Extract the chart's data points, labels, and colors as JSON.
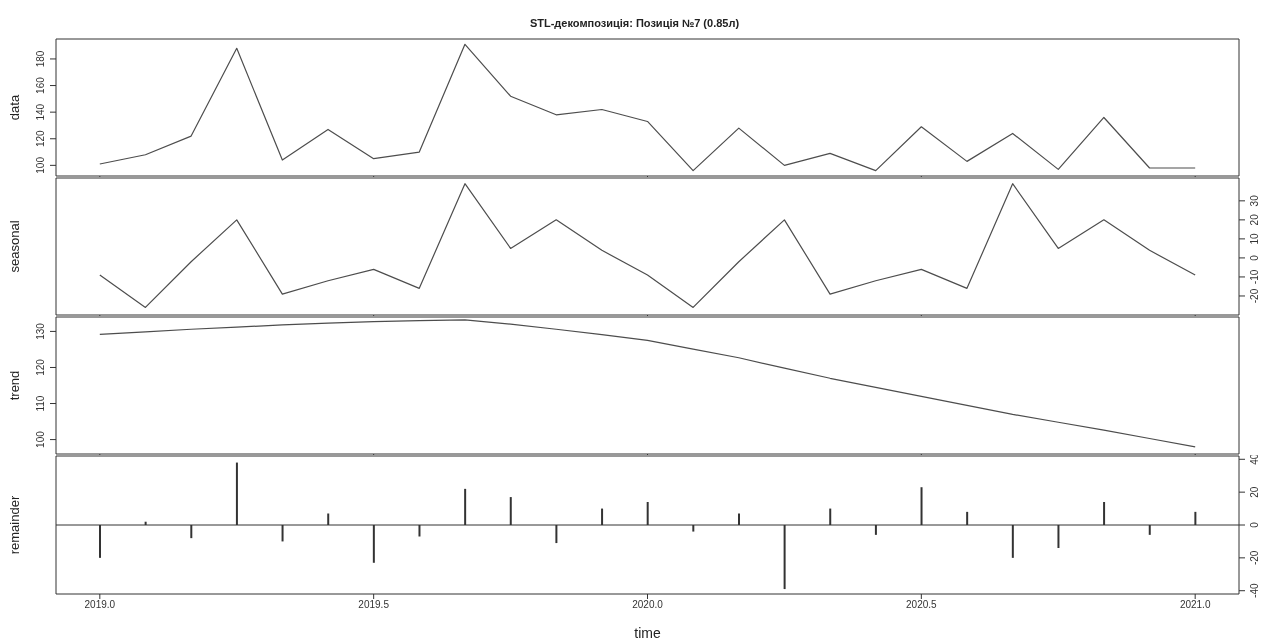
{
  "chart_data": [
    {
      "type": "line",
      "title": "STL-декомпозиція: Позиція №7 (0.85л)",
      "ylabel": "data",
      "x": [
        2019,
        2019.0833,
        2019.1667,
        2019.25,
        2019.3333,
        2019.4167,
        2019.5,
        2019.5833,
        2019.6667,
        2019.75,
        2019.8333,
        2019.9167,
        2020,
        2020.0833,
        2020.1667,
        2020.25,
        2020.3333,
        2020.4167,
        2020.5,
        2020.5833,
        2020.6667,
        2020.75,
        2020.8333,
        2020.9167,
        2021
      ],
      "series": [
        {
          "color": "#4d4d4d",
          "values": [
            101,
            108,
            122,
            188,
            104,
            127,
            105,
            110,
            191,
            152,
            138,
            142,
            133,
            96,
            128,
            100,
            109,
            96,
            129,
            103,
            124,
            97,
            136,
            98,
            98
          ]
        }
      ],
      "xlim": [
        2018.92,
        2021.08
      ],
      "xticks": [
        {
          "value": 2019,
          "label": null
        },
        {
          "value": 2019.5,
          "label": null
        },
        {
          "value": 2020,
          "label": null
        },
        {
          "value": 2020.5,
          "label": null
        },
        {
          "value": 2021,
          "label": null
        }
      ],
      "ylim": [
        92,
        195
      ],
      "yticks": [
        100,
        120,
        140,
        160,
        180
      ],
      "tick_labels": "y"
    },
    {
      "type": "line",
      "ylabel": "seasonal",
      "x": [
        2019,
        2019.0833,
        2019.1667,
        2019.25,
        2019.3333,
        2019.4167,
        2019.5,
        2019.5833,
        2019.6667,
        2019.75,
        2019.8333,
        2019.9167,
        2020,
        2020.0833,
        2020.1667,
        2020.25,
        2020.3333,
        2020.4167,
        2020.5,
        2020.5833,
        2020.6667,
        2020.75,
        2020.8333,
        2020.9167,
        2021
      ],
      "series": [
        {
          "color": "#4d4d4d",
          "axis": "y2",
          "values": [
            -9,
            -26,
            -2,
            20,
            -19,
            -12,
            -6,
            -16,
            39,
            5,
            20,
            4,
            -9,
            -26,
            -2,
            20,
            -19,
            -12,
            -6,
            -16,
            39,
            5,
            20,
            4,
            -9
          ]
        }
      ],
      "xlim": [
        2018.92,
        2021.08
      ],
      "xticks": [
        {
          "value": 2019,
          "label": null
        },
        {
          "value": 2019.5,
          "label": null
        },
        {
          "value": 2020,
          "label": null
        },
        {
          "value": 2020.5,
          "label": null
        },
        {
          "value": 2021,
          "label": null
        }
      ],
      "y2lim": [
        -30,
        42
      ],
      "y2ticks": [
        -20,
        -10,
        0,
        10,
        20,
        30
      ],
      "tick_labels": "y"
    },
    {
      "type": "line",
      "ylabel": "trend",
      "x": [
        2019,
        2019.0833,
        2019.1667,
        2019.25,
        2019.3333,
        2019.4167,
        2019.5,
        2019.5833,
        2019.6667,
        2019.75,
        2019.8333,
        2019.9167,
        2020,
        2020.0833,
        2020.1667,
        2020.25,
        2020.3333,
        2020.4167,
        2020.5,
        2020.5833,
        2020.6667,
        2020.75,
        2020.8333,
        2020.9167,
        2021
      ],
      "series": [
        {
          "color": "#4d4d4d",
          "values": [
            129.2,
            129.9,
            130.6,
            131.2,
            131.8,
            132.3,
            132.7,
            133.0,
            133.2,
            132.0,
            130.6,
            129.1,
            127.5,
            125.1,
            122.7,
            119.8,
            117.0,
            114.5,
            112.0,
            109.5,
            107.0,
            104.8,
            102.6,
            100.3,
            98.0
          ]
        }
      ],
      "xlim": [
        2018.92,
        2021.08
      ],
      "xticks": [
        {
          "value": 2019,
          "label": null
        },
        {
          "value": 2019.5,
          "label": null
        },
        {
          "value": 2020,
          "label": null
        },
        {
          "value": 2020.5,
          "label": null
        },
        {
          "value": 2021,
          "label": null
        }
      ],
      "ylim": [
        96,
        134
      ],
      "yticks": [
        100,
        110,
        120,
        130
      ],
      "tick_labels": "y"
    },
    {
      "type": "bar",
      "ylabel": "remainder",
      "xlabel": "time",
      "x": [
        2019,
        2019.0833,
        2019.1667,
        2019.25,
        2019.3333,
        2019.4167,
        2019.5,
        2019.5833,
        2019.6667,
        2019.75,
        2019.8333,
        2019.9167,
        2020,
        2020.0833,
        2020.1667,
        2020.25,
        2020.3333,
        2020.4167,
        2020.5,
        2020.5833,
        2020.6667,
        2020.75,
        2020.8333,
        2020.9167,
        2021
      ],
      "series": [
        {
          "color": "#333333",
          "axis": "y2",
          "values": [
            -20,
            2,
            -8,
            38,
            -10,
            7,
            -23,
            -7,
            22,
            17,
            -11,
            10,
            14,
            -4,
            7,
            -39,
            10,
            -6,
            23,
            8,
            -20,
            -14,
            14,
            -6,
            8
          ]
        }
      ],
      "xlim": [
        2018.92,
        2021.08
      ],
      "xticks": [
        {
          "value": 2019,
          "label": "2019.0"
        },
        {
          "value": 2019.5,
          "label": "2019.5"
        },
        {
          "value": 2020,
          "label": "2020.0"
        },
        {
          "value": 2020.5,
          "label": "2020.5"
        },
        {
          "value": 2021,
          "label": "2021.0"
        }
      ],
      "y2lim": [
        -42,
        42
      ],
      "y2ticks": [
        -40,
        -20,
        0,
        20,
        40
      ],
      "ref_lines": [
        {
          "axis": "y2",
          "value": 0,
          "color": "#333333"
        }
      ]
    }
  ]
}
